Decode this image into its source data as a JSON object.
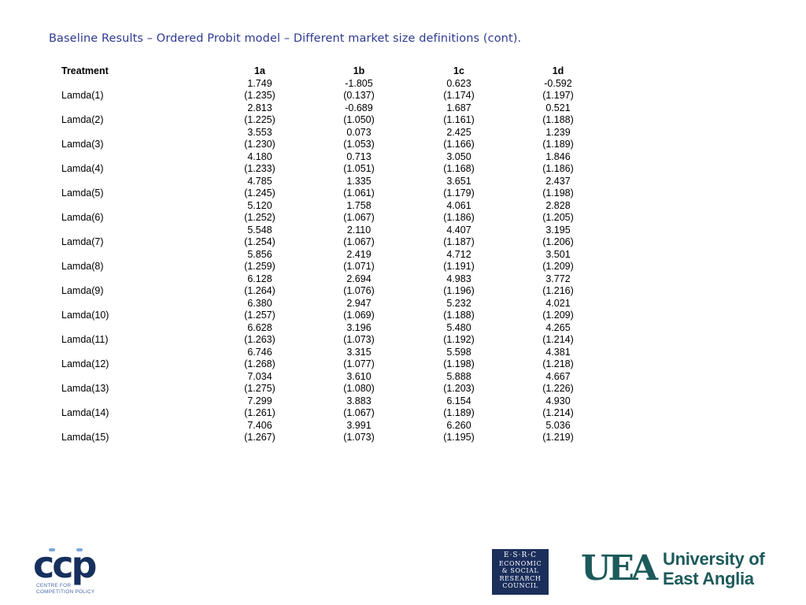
{
  "title": "Baseline Results – Ordered Probit model – Different market size definitions (cont).",
  "table": {
    "header": {
      "treatment": "Treatment",
      "columns": [
        "1a",
        "1b",
        "1c",
        "1d"
      ]
    },
    "rows": [
      {
        "label": "Lamda(1)",
        "coef": [
          "1.749",
          "-1.805",
          "0.623",
          "-0.592"
        ],
        "se": [
          "(1.235)",
          "(0.137)",
          "(1.174)",
          "(1.197)"
        ]
      },
      {
        "label": "Lamda(2)",
        "coef": [
          "2.813",
          "-0.689",
          "1.687",
          "0.521"
        ],
        "se": [
          "(1.225)",
          "(1.050)",
          "(1.161)",
          "(1.188)"
        ]
      },
      {
        "label": "Lamda(3)",
        "coef": [
          "3.553",
          "0.073",
          "2.425",
          "1.239"
        ],
        "se": [
          "(1.230)",
          "(1.053)",
          "(1.166)",
          "(1.189)"
        ]
      },
      {
        "label": "Lamda(4)",
        "coef": [
          "4.180",
          "0.713",
          "3.050",
          "1.846"
        ],
        "se": [
          "(1.233)",
          "(1.051)",
          "(1.168)",
          "(1.186)"
        ]
      },
      {
        "label": "Lamda(5)",
        "coef": [
          "4.785",
          "1.335",
          "3.651",
          "2.437"
        ],
        "se": [
          "(1.245)",
          "(1.061)",
          "(1.179)",
          "(1.198)"
        ]
      },
      {
        "label": "Lamda(6)",
        "coef": [
          "5.120",
          "1.758",
          "4.061",
          "2.828"
        ],
        "se": [
          "(1.252)",
          "(1.067)",
          "(1.186)",
          "(1.205)"
        ]
      },
      {
        "label": "Lamda(7)",
        "coef": [
          "5.548",
          "2.110",
          "4.407",
          "3.195"
        ],
        "se": [
          "(1.254)",
          "(1.067)",
          "(1.187)",
          "(1.206)"
        ]
      },
      {
        "label": "Lamda(8)",
        "coef": [
          "5.856",
          "2.419",
          "4.712",
          "3.501"
        ],
        "se": [
          "(1.259)",
          "(1.071)",
          "(1.191)",
          "(1.209)"
        ]
      },
      {
        "label": "Lamda(9)",
        "coef": [
          "6.128",
          "2.694",
          "4.983",
          "3.772"
        ],
        "se": [
          "(1.264)",
          "(1.076)",
          "(1.196)",
          "(1.216)"
        ]
      },
      {
        "label": "Lamda(10)",
        "coef": [
          "6.380",
          "2.947",
          "5.232",
          "4.021"
        ],
        "se": [
          "(1.257)",
          "(1.069)",
          "(1.188)",
          "(1.209)"
        ]
      },
      {
        "label": "Lamda(11)",
        "coef": [
          "6.628",
          "3.196",
          "5.480",
          "4.265"
        ],
        "se": [
          "(1.263)",
          "(1.073)",
          "(1.192)",
          "(1.214)"
        ]
      },
      {
        "label": "Lamda(12)",
        "coef": [
          "6.746",
          "3.315",
          "5.598",
          "4.381"
        ],
        "se": [
          "(1.268)",
          "(1.077)",
          "(1.198)",
          "(1.218)"
        ]
      },
      {
        "label": "Lamda(13)",
        "coef": [
          "7.034",
          "3.610",
          "5.888",
          "4.667"
        ],
        "se": [
          "(1.275)",
          "(1.080)",
          "(1.203)",
          "(1.226)"
        ]
      },
      {
        "label": "Lamda(14)",
        "coef": [
          "7.299",
          "3.883",
          "6.154",
          "4.930"
        ],
        "se": [
          "(1.261)",
          "(1.067)",
          "(1.189)",
          "(1.214)"
        ]
      },
      {
        "label": "Lamda(15)",
        "coef": [
          "7.406",
          "3.991",
          "6.260",
          "5.036"
        ],
        "se": [
          "(1.267)",
          "(1.073)",
          "(1.195)",
          "(1.219)"
        ]
      }
    ]
  },
  "logos": {
    "ccp": {
      "letters": "ccp",
      "subtitle_line1": "CENTRE FOR",
      "subtitle_line2": "COMPETITION POLICY",
      "color": "#16305e"
    },
    "esrc": {
      "line1": "E·S·R·C",
      "line2": "ECONOMIC",
      "line3": "& SOCIAL",
      "line4": "RESEARCH",
      "line5": "COUNCIL",
      "background": "#1c2f5c"
    },
    "uea": {
      "mark": "UEA",
      "line1": "University of",
      "line2": "East Anglia",
      "color": "#1d5a5b"
    }
  },
  "colors": {
    "title": "#2f3a8f",
    "text": "#000000"
  }
}
